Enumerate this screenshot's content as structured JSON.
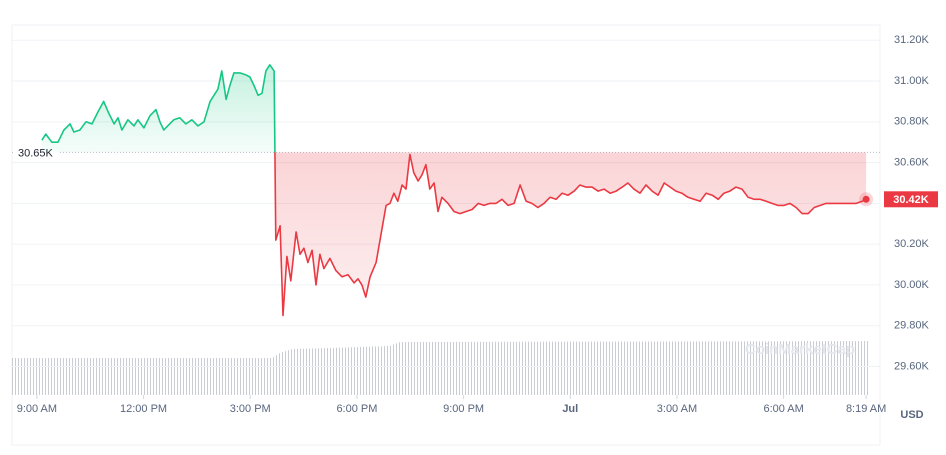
{
  "chart_data": {
    "type": "line",
    "baseline": {
      "value": 30650,
      "label": "30.65K"
    },
    "current_label": "30.42K",
    "currency": "USD",
    "watermark": "CoinMarketCap",
    "colors": {
      "up": "#16c784",
      "down": "#ea3943"
    },
    "grid": true,
    "xlim": [
      8.3,
      32.71
    ],
    "xticks": [
      {
        "value": 9,
        "label": "9:00 AM"
      },
      {
        "value": 12,
        "label": "12:00 PM"
      },
      {
        "value": 15,
        "label": "3:00 PM"
      },
      {
        "value": 18,
        "label": "6:00 PM"
      },
      {
        "value": 21,
        "label": "9:00 PM"
      },
      {
        "value": 24,
        "label": "Jul"
      },
      {
        "value": 27,
        "label": "3:00 AM"
      },
      {
        "value": 30,
        "label": "6:00 AM"
      },
      {
        "value": 32.32,
        "label": "8:19 AM"
      }
    ],
    "ylim": [
      29460,
      31275
    ],
    "yticks": [
      {
        "value": 29600,
        "label": "29.60K"
      },
      {
        "value": 29800,
        "label": "29.80K"
      },
      {
        "value": 30000,
        "label": "30.00K"
      },
      {
        "value": 30200,
        "label": "30.20K"
      },
      {
        "value": 30400,
        "label": "30.40K"
      },
      {
        "value": 30600,
        "label": "30.60K"
      },
      {
        "value": 30800,
        "label": "30.80K"
      },
      {
        "value": 31000,
        "label": "31.00K"
      },
      {
        "value": 31200,
        "label": "31.20K"
      }
    ],
    "x": [
      9.14,
      9.25,
      9.42,
      9.59,
      9.76,
      9.93,
      10.04,
      10.21,
      10.38,
      10.55,
      10.72,
      10.88,
      11.0,
      11.17,
      11.28,
      11.39,
      11.56,
      11.73,
      11.84,
      12.01,
      12.18,
      12.35,
      12.46,
      12.57,
      12.68,
      12.85,
      13.02,
      13.19,
      13.36,
      13.53,
      13.7,
      13.87,
      13.98,
      14.09,
      14.2,
      14.32,
      14.43,
      14.54,
      14.71,
      14.88,
      14.99,
      15.1,
      15.22,
      15.33,
      15.44,
      15.55,
      15.67,
      15.72,
      15.84,
      15.92,
      16.03,
      16.14,
      16.29,
      16.4,
      16.51,
      16.62,
      16.74,
      16.85,
      16.96,
      17.07,
      17.24,
      17.41,
      17.58,
      17.75,
      17.92,
      18.03,
      18.14,
      18.25,
      18.37,
      18.54,
      18.7,
      18.82,
      18.93,
      19.04,
      19.15,
      19.27,
      19.38,
      19.49,
      19.6,
      19.72,
      19.83,
      19.94,
      20.05,
      20.17,
      20.28,
      20.39,
      20.56,
      20.73,
      20.9,
      21.07,
      21.24,
      21.41,
      21.57,
      21.74,
      21.91,
      22.08,
      22.25,
      22.42,
      22.59,
      22.76,
      22.92,
      23.09,
      23.26,
      23.43,
      23.6,
      23.77,
      23.94,
      24.11,
      24.27,
      24.44,
      24.61,
      24.78,
      24.95,
      25.12,
      25.29,
      25.46,
      25.62,
      25.79,
      25.96,
      26.13,
      26.3,
      26.47,
      26.64,
      26.81,
      26.97,
      27.14,
      27.31,
      27.48,
      27.65,
      27.82,
      27.99,
      28.16,
      28.32,
      28.49,
      28.66,
      28.83,
      29.0,
      29.17,
      29.34,
      29.51,
      29.67,
      29.84,
      30.01,
      30.18,
      30.35,
      30.52,
      30.69,
      30.86,
      31.03,
      31.19,
      31.36,
      31.53,
      31.7,
      31.87,
      32.04,
      32.21,
      32.32
    ],
    "values": [
      30710,
      30740,
      30700,
      30700,
      30760,
      30790,
      30750,
      30760,
      30800,
      30790,
      30850,
      30900,
      30850,
      30790,
      30820,
      30760,
      30810,
      30780,
      30810,
      30770,
      30830,
      30860,
      30800,
      30760,
      30780,
      30810,
      30820,
      30790,
      30810,
      30780,
      30800,
      30900,
      30930,
      30960,
      31050,
      30910,
      30980,
      31040,
      31040,
      31030,
      31020,
      30980,
      30930,
      30940,
      31050,
      31080,
      31050,
      30220,
      30290,
      29850,
      30140,
      30020,
      30260,
      30150,
      30180,
      30110,
      30170,
      30000,
      30150,
      30080,
      30130,
      30070,
      30040,
      30050,
      30010,
      30030,
      30000,
      29940,
      30040,
      30110,
      30270,
      30390,
      30400,
      30450,
      30410,
      30490,
      30470,
      30640,
      30550,
      30510,
      30540,
      30590,
      30470,
      30500,
      30360,
      30430,
      30400,
      30360,
      30350,
      30360,
      30370,
      30400,
      30390,
      30400,
      30400,
      30420,
      30390,
      30400,
      30490,
      30410,
      30400,
      30380,
      30400,
      30430,
      30420,
      30450,
      30440,
      30460,
      30490,
      30480,
      30480,
      30460,
      30470,
      30450,
      30460,
      30480,
      30500,
      30470,
      30450,
      30490,
      30460,
      30440,
      30500,
      30480,
      30460,
      30450,
      30430,
      30420,
      30410,
      30450,
      30440,
      30420,
      30450,
      30460,
      30480,
      30470,
      30430,
      30420,
      30420,
      30410,
      30400,
      30390,
      30390,
      30400,
      30380,
      30350,
      30350,
      30380,
      30390,
      30400,
      30400,
      30400,
      30400,
      30400,
      30400,
      30410,
      30420
    ]
  }
}
